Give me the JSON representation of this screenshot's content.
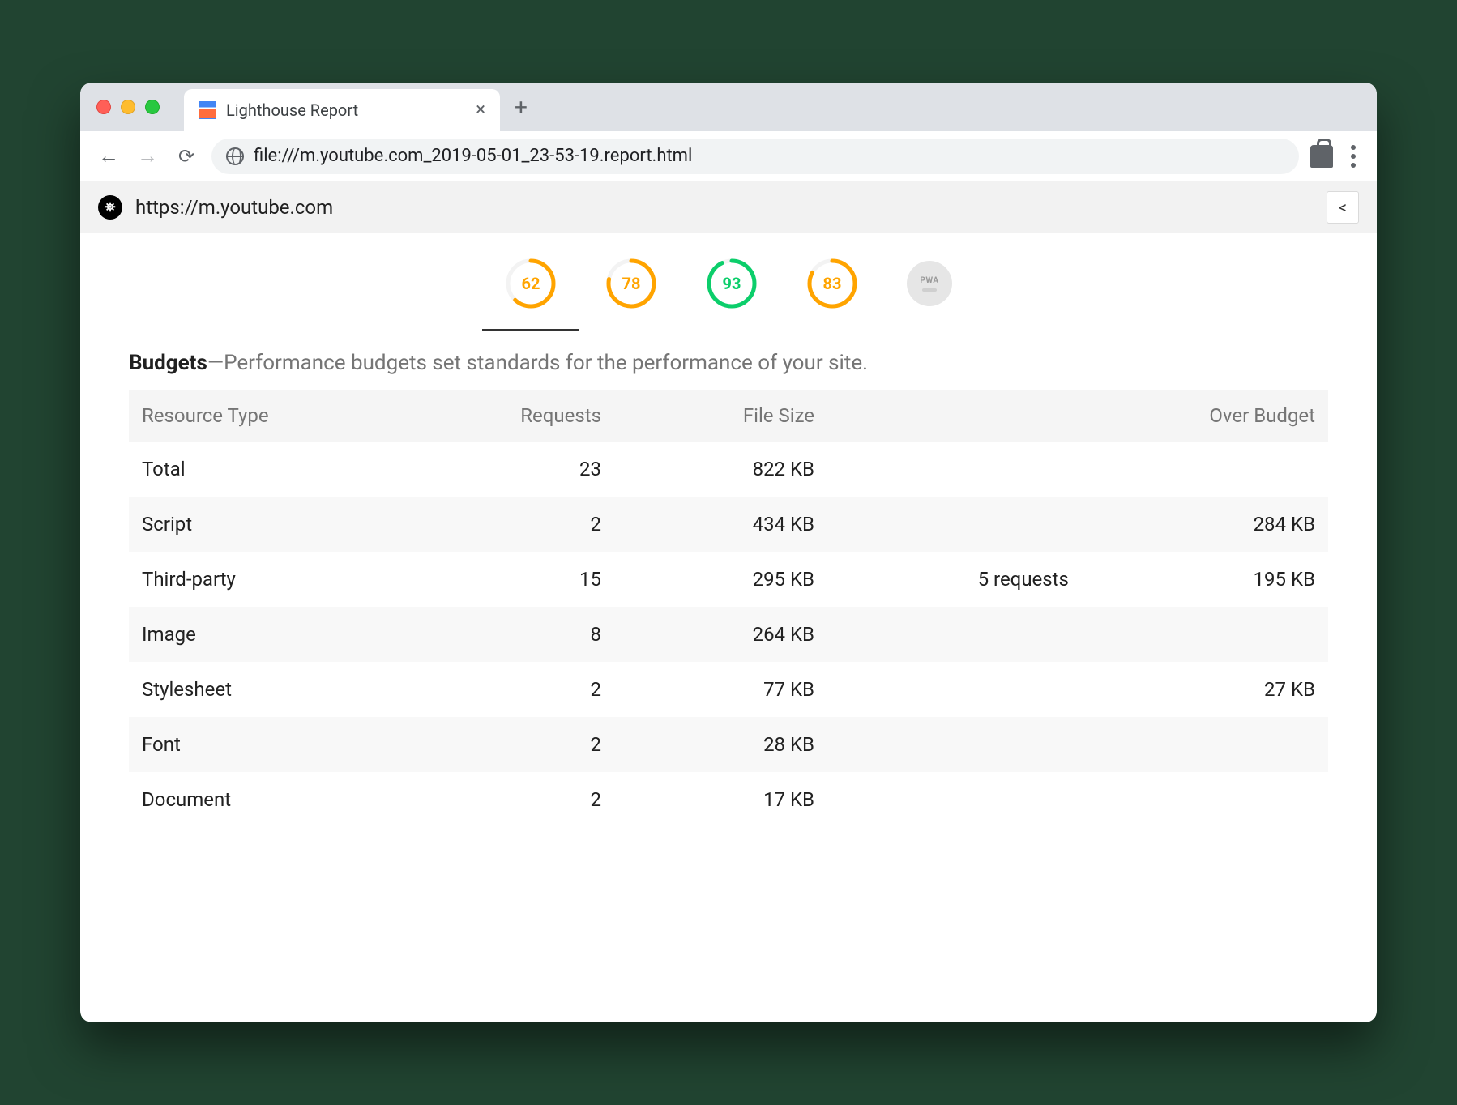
{
  "browser": {
    "tab_title": "Lighthouse Report",
    "url": "file:///m.youtube.com_2019-05-01_23-53-19.report.html"
  },
  "lighthouse": {
    "header_url": "https://m.youtube.com",
    "colors": {
      "average": "#ffa400",
      "pass": "#0cce6b",
      "over_budget": "#e53935"
    },
    "gauges": [
      {
        "value": 62,
        "status": "average",
        "active": true
      },
      {
        "value": 78,
        "status": "average",
        "active": false
      },
      {
        "value": 93,
        "status": "pass",
        "active": false
      },
      {
        "value": 83,
        "status": "average",
        "active": false
      }
    ],
    "pwa_label": "PWA",
    "budgets": {
      "heading_bold": "Budgets",
      "heading_rest": "—Performance budgets set standards for the performance of your site.",
      "columns": {
        "resource_type": "Resource Type",
        "requests": "Requests",
        "file_size": "File Size",
        "over_requests": "",
        "over_budget": "Over Budget"
      },
      "rows": [
        {
          "resource_type": "Total",
          "requests": "23",
          "file_size": "822 KB",
          "over_requests": "",
          "over_budget": ""
        },
        {
          "resource_type": "Script",
          "requests": "2",
          "file_size": "434 KB",
          "over_requests": "",
          "over_budget": "284 KB"
        },
        {
          "resource_type": "Third-party",
          "requests": "15",
          "file_size": "295 KB",
          "over_requests": "5 requests",
          "over_budget": "195 KB"
        },
        {
          "resource_type": "Image",
          "requests": "8",
          "file_size": "264 KB",
          "over_requests": "",
          "over_budget": ""
        },
        {
          "resource_type": "Stylesheet",
          "requests": "2",
          "file_size": "77 KB",
          "over_requests": "",
          "over_budget": "27 KB"
        },
        {
          "resource_type": "Font",
          "requests": "2",
          "file_size": "28 KB",
          "over_requests": "",
          "over_budget": ""
        },
        {
          "resource_type": "Document",
          "requests": "2",
          "file_size": "17 KB",
          "over_requests": "",
          "over_budget": ""
        }
      ]
    }
  }
}
